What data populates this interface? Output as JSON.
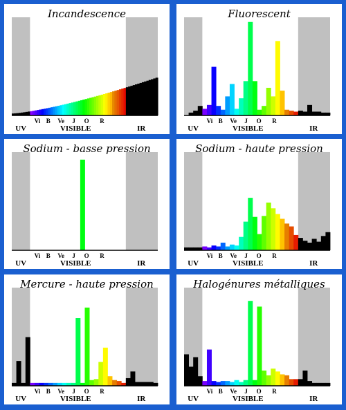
{
  "colors": {
    "background": "#1a5fd0",
    "uv_ir_band": "#c0c0c0",
    "panel": "#ffffff"
  },
  "axis_labels": {
    "uv": "UV",
    "visible": "VISIBLE",
    "ir": "IR",
    "letters": [
      "Vi",
      "B",
      "Ve",
      "J",
      "O",
      "R"
    ]
  },
  "chart_data": [
    {
      "type": "bar",
      "title": "Incandescence",
      "profile": "ramp",
      "ramp": {
        "start": 2,
        "end": 40
      },
      "ylim": [
        0,
        100
      ]
    },
    {
      "type": "bar",
      "title": "Fluorescent",
      "profile": "bars",
      "bars": [
        {
          "x": 0.25,
          "w": 0.25,
          "v": 3
        },
        {
          "x": 0.5,
          "w": 0.25,
          "v": 5
        },
        {
          "x": 0.75,
          "w": 0.25,
          "v": 10
        },
        {
          "x": 1.0,
          "w": 0.25,
          "v": 7
        },
        {
          "x": 1.25,
          "w": 0.25,
          "v": 11
        },
        {
          "x": 1.5,
          "w": 0.25,
          "v": 51
        },
        {
          "x": 1.75,
          "w": 0.25,
          "v": 10
        },
        {
          "x": 2.0,
          "w": 0.25,
          "v": 6
        },
        {
          "x": 2.25,
          "w": 0.25,
          "v": 20
        },
        {
          "x": 2.5,
          "w": 0.25,
          "v": 33
        },
        {
          "x": 2.75,
          "w": 0.25,
          "v": 7
        },
        {
          "x": 3.0,
          "w": 0.25,
          "v": 18
        },
        {
          "x": 3.25,
          "w": 0.25,
          "v": 36
        },
        {
          "x": 3.5,
          "w": 0.25,
          "v": 98
        },
        {
          "x": 3.75,
          "w": 0.25,
          "v": 36
        },
        {
          "x": 4.0,
          "w": 0.25,
          "v": 6
        },
        {
          "x": 4.25,
          "w": 0.25,
          "v": 10
        },
        {
          "x": 4.5,
          "w": 0.25,
          "v": 29
        },
        {
          "x": 4.75,
          "w": 0.25,
          "v": 20
        },
        {
          "x": 5.0,
          "w": 0.25,
          "v": 78
        },
        {
          "x": 5.25,
          "w": 0.25,
          "v": 26
        },
        {
          "x": 5.5,
          "w": 0.25,
          "v": 6
        },
        {
          "x": 5.75,
          "w": 0.25,
          "v": 5
        },
        {
          "x": 6.0,
          "w": 0.25,
          "v": 4
        },
        {
          "x": 6.25,
          "w": 0.25,
          "v": 5
        },
        {
          "x": 6.5,
          "w": 0.25,
          "v": 4
        },
        {
          "x": 6.75,
          "w": 0.25,
          "v": 11
        },
        {
          "x": 7.0,
          "w": 0.25,
          "v": 4
        },
        {
          "x": 7.25,
          "w": 0.25,
          "v": 4
        },
        {
          "x": 7.5,
          "w": 0.25,
          "v": 3
        },
        {
          "x": 7.75,
          "w": 0.25,
          "v": 3
        }
      ],
      "ylim": [
        0,
        100
      ]
    },
    {
      "type": "bar",
      "title": "Sodium - basse pression",
      "profile": "bars",
      "bars": [
        {
          "x": 3.75,
          "w": 0.25,
          "v": 95
        }
      ],
      "ylim": [
        0,
        100
      ]
    },
    {
      "type": "bar",
      "title": "Sodium - haute pression",
      "profile": "bars",
      "bars": [
        {
          "x": 0.0,
          "w": 0.25,
          "v": 3
        },
        {
          "x": 0.25,
          "w": 0.25,
          "v": 3
        },
        {
          "x": 0.5,
          "w": 0.25,
          "v": 3
        },
        {
          "x": 0.75,
          "w": 0.25,
          "v": 3
        },
        {
          "x": 1.0,
          "w": 0.25,
          "v": 4
        },
        {
          "x": 1.25,
          "w": 0.25,
          "v": 3
        },
        {
          "x": 1.5,
          "w": 0.25,
          "v": 5
        },
        {
          "x": 1.75,
          "w": 0.25,
          "v": 4
        },
        {
          "x": 2.0,
          "w": 0.25,
          "v": 8
        },
        {
          "x": 2.25,
          "w": 0.25,
          "v": 4
        },
        {
          "x": 2.5,
          "w": 0.25,
          "v": 6
        },
        {
          "x": 2.75,
          "w": 0.25,
          "v": 5
        },
        {
          "x": 3.0,
          "w": 0.25,
          "v": 14
        },
        {
          "x": 3.25,
          "w": 0.25,
          "v": 30
        },
        {
          "x": 3.5,
          "w": 0.25,
          "v": 55
        },
        {
          "x": 3.75,
          "w": 0.25,
          "v": 35
        },
        {
          "x": 4.0,
          "w": 0.25,
          "v": 17
        },
        {
          "x": 4.25,
          "w": 0.25,
          "v": 36
        },
        {
          "x": 4.5,
          "w": 0.25,
          "v": 50
        },
        {
          "x": 4.75,
          "w": 0.25,
          "v": 44
        },
        {
          "x": 5.0,
          "w": 0.25,
          "v": 38
        },
        {
          "x": 5.25,
          "w": 0.25,
          "v": 33
        },
        {
          "x": 5.5,
          "w": 0.25,
          "v": 28
        },
        {
          "x": 5.75,
          "w": 0.25,
          "v": 25
        },
        {
          "x": 6.0,
          "w": 0.25,
          "v": 16
        },
        {
          "x": 6.25,
          "w": 0.25,
          "v": 13
        },
        {
          "x": 6.5,
          "w": 0.25,
          "v": 10
        },
        {
          "x": 6.75,
          "w": 0.25,
          "v": 8
        },
        {
          "x": 7.0,
          "w": 0.25,
          "v": 12
        },
        {
          "x": 7.25,
          "w": 0.25,
          "v": 9
        },
        {
          "x": 7.5,
          "w": 0.25,
          "v": 15
        },
        {
          "x": 7.75,
          "w": 0.25,
          "v": 19
        }
      ],
      "ylim": [
        0,
        100
      ]
    },
    {
      "type": "bar",
      "title": "Mercure - haute pression",
      "profile": "bars",
      "bars": [
        {
          "x": 0.0,
          "w": 0.25,
          "v": 3
        },
        {
          "x": 0.25,
          "w": 0.25,
          "v": 26
        },
        {
          "x": 0.5,
          "w": 0.25,
          "v": 3
        },
        {
          "x": 0.75,
          "w": 0.25,
          "v": 51
        },
        {
          "x": 1.0,
          "w": 0.25,
          "v": 3
        },
        {
          "x": 1.25,
          "w": 0.25,
          "v": 3
        },
        {
          "x": 1.5,
          "w": 0.25,
          "v": 3
        },
        {
          "x": 1.75,
          "w": 0.25,
          "v": 3
        },
        {
          "x": 2.0,
          "w": 0.25,
          "v": 3
        },
        {
          "x": 2.25,
          "w": 0.25,
          "v": 3
        },
        {
          "x": 2.5,
          "w": 0.25,
          "v": 3
        },
        {
          "x": 2.75,
          "w": 0.25,
          "v": 3
        },
        {
          "x": 3.0,
          "w": 0.25,
          "v": 3
        },
        {
          "x": 3.25,
          "w": 0.25,
          "v": 3
        },
        {
          "x": 3.5,
          "w": 0.25,
          "v": 71
        },
        {
          "x": 3.75,
          "w": 0.25,
          "v": 3
        },
        {
          "x": 4.0,
          "w": 0.25,
          "v": 82
        },
        {
          "x": 4.25,
          "w": 0.25,
          "v": 6
        },
        {
          "x": 4.5,
          "w": 0.25,
          "v": 7
        },
        {
          "x": 4.75,
          "w": 0.25,
          "v": 25
        },
        {
          "x": 5.0,
          "w": 0.25,
          "v": 40
        },
        {
          "x": 5.25,
          "w": 0.25,
          "v": 10
        },
        {
          "x": 5.5,
          "w": 0.25,
          "v": 6
        },
        {
          "x": 5.75,
          "w": 0.25,
          "v": 5
        },
        {
          "x": 6.0,
          "w": 0.25,
          "v": 3
        },
        {
          "x": 6.25,
          "w": 0.25,
          "v": 8
        },
        {
          "x": 6.5,
          "w": 0.25,
          "v": 15
        },
        {
          "x": 6.75,
          "w": 0.25,
          "v": 4
        },
        {
          "x": 7.0,
          "w": 0.25,
          "v": 4
        },
        {
          "x": 7.25,
          "w": 0.25,
          "v": 4
        },
        {
          "x": 7.5,
          "w": 0.25,
          "v": 4
        },
        {
          "x": 7.75,
          "w": 0.25,
          "v": 3
        }
      ],
      "ylim": [
        0,
        100
      ]
    },
    {
      "type": "bar",
      "title": "Halogénures métalliques",
      "profile": "bars",
      "bars": [
        {
          "x": 0.0,
          "w": 0.25,
          "v": 33
        },
        {
          "x": 0.25,
          "w": 0.25,
          "v": 20
        },
        {
          "x": 0.5,
          "w": 0.25,
          "v": 30
        },
        {
          "x": 0.75,
          "w": 0.25,
          "v": 10
        },
        {
          "x": 1.0,
          "w": 0.25,
          "v": 5
        },
        {
          "x": 1.25,
          "w": 0.25,
          "v": 38
        },
        {
          "x": 1.5,
          "w": 0.25,
          "v": 5
        },
        {
          "x": 1.75,
          "w": 0.25,
          "v": 4
        },
        {
          "x": 2.0,
          "w": 0.25,
          "v": 5
        },
        {
          "x": 2.25,
          "w": 0.25,
          "v": 5
        },
        {
          "x": 2.5,
          "w": 0.25,
          "v": 4
        },
        {
          "x": 2.75,
          "w": 0.25,
          "v": 6
        },
        {
          "x": 3.0,
          "w": 0.25,
          "v": 4
        },
        {
          "x": 3.25,
          "w": 0.25,
          "v": 6
        },
        {
          "x": 3.5,
          "w": 0.25,
          "v": 89
        },
        {
          "x": 3.75,
          "w": 0.25,
          "v": 6
        },
        {
          "x": 4.0,
          "w": 0.25,
          "v": 83
        },
        {
          "x": 4.25,
          "w": 0.25,
          "v": 16
        },
        {
          "x": 4.5,
          "w": 0.25,
          "v": 11
        },
        {
          "x": 4.75,
          "w": 0.25,
          "v": 18
        },
        {
          "x": 5.0,
          "w": 0.25,
          "v": 15
        },
        {
          "x": 5.25,
          "w": 0.25,
          "v": 12
        },
        {
          "x": 5.5,
          "w": 0.25,
          "v": 11
        },
        {
          "x": 5.75,
          "w": 0.25,
          "v": 7
        },
        {
          "x": 6.0,
          "w": 0.25,
          "v": 7
        },
        {
          "x": 6.25,
          "w": 0.25,
          "v": 7
        },
        {
          "x": 6.5,
          "w": 0.25,
          "v": 16
        },
        {
          "x": 6.75,
          "w": 0.25,
          "v": 5
        },
        {
          "x": 7.0,
          "w": 0.25,
          "v": 3
        },
        {
          "x": 7.25,
          "w": 0.25,
          "v": 3
        },
        {
          "x": 7.5,
          "w": 0.25,
          "v": 3
        },
        {
          "x": 7.75,
          "w": 0.25,
          "v": 3
        }
      ],
      "ylim": [
        0,
        100
      ]
    }
  ]
}
